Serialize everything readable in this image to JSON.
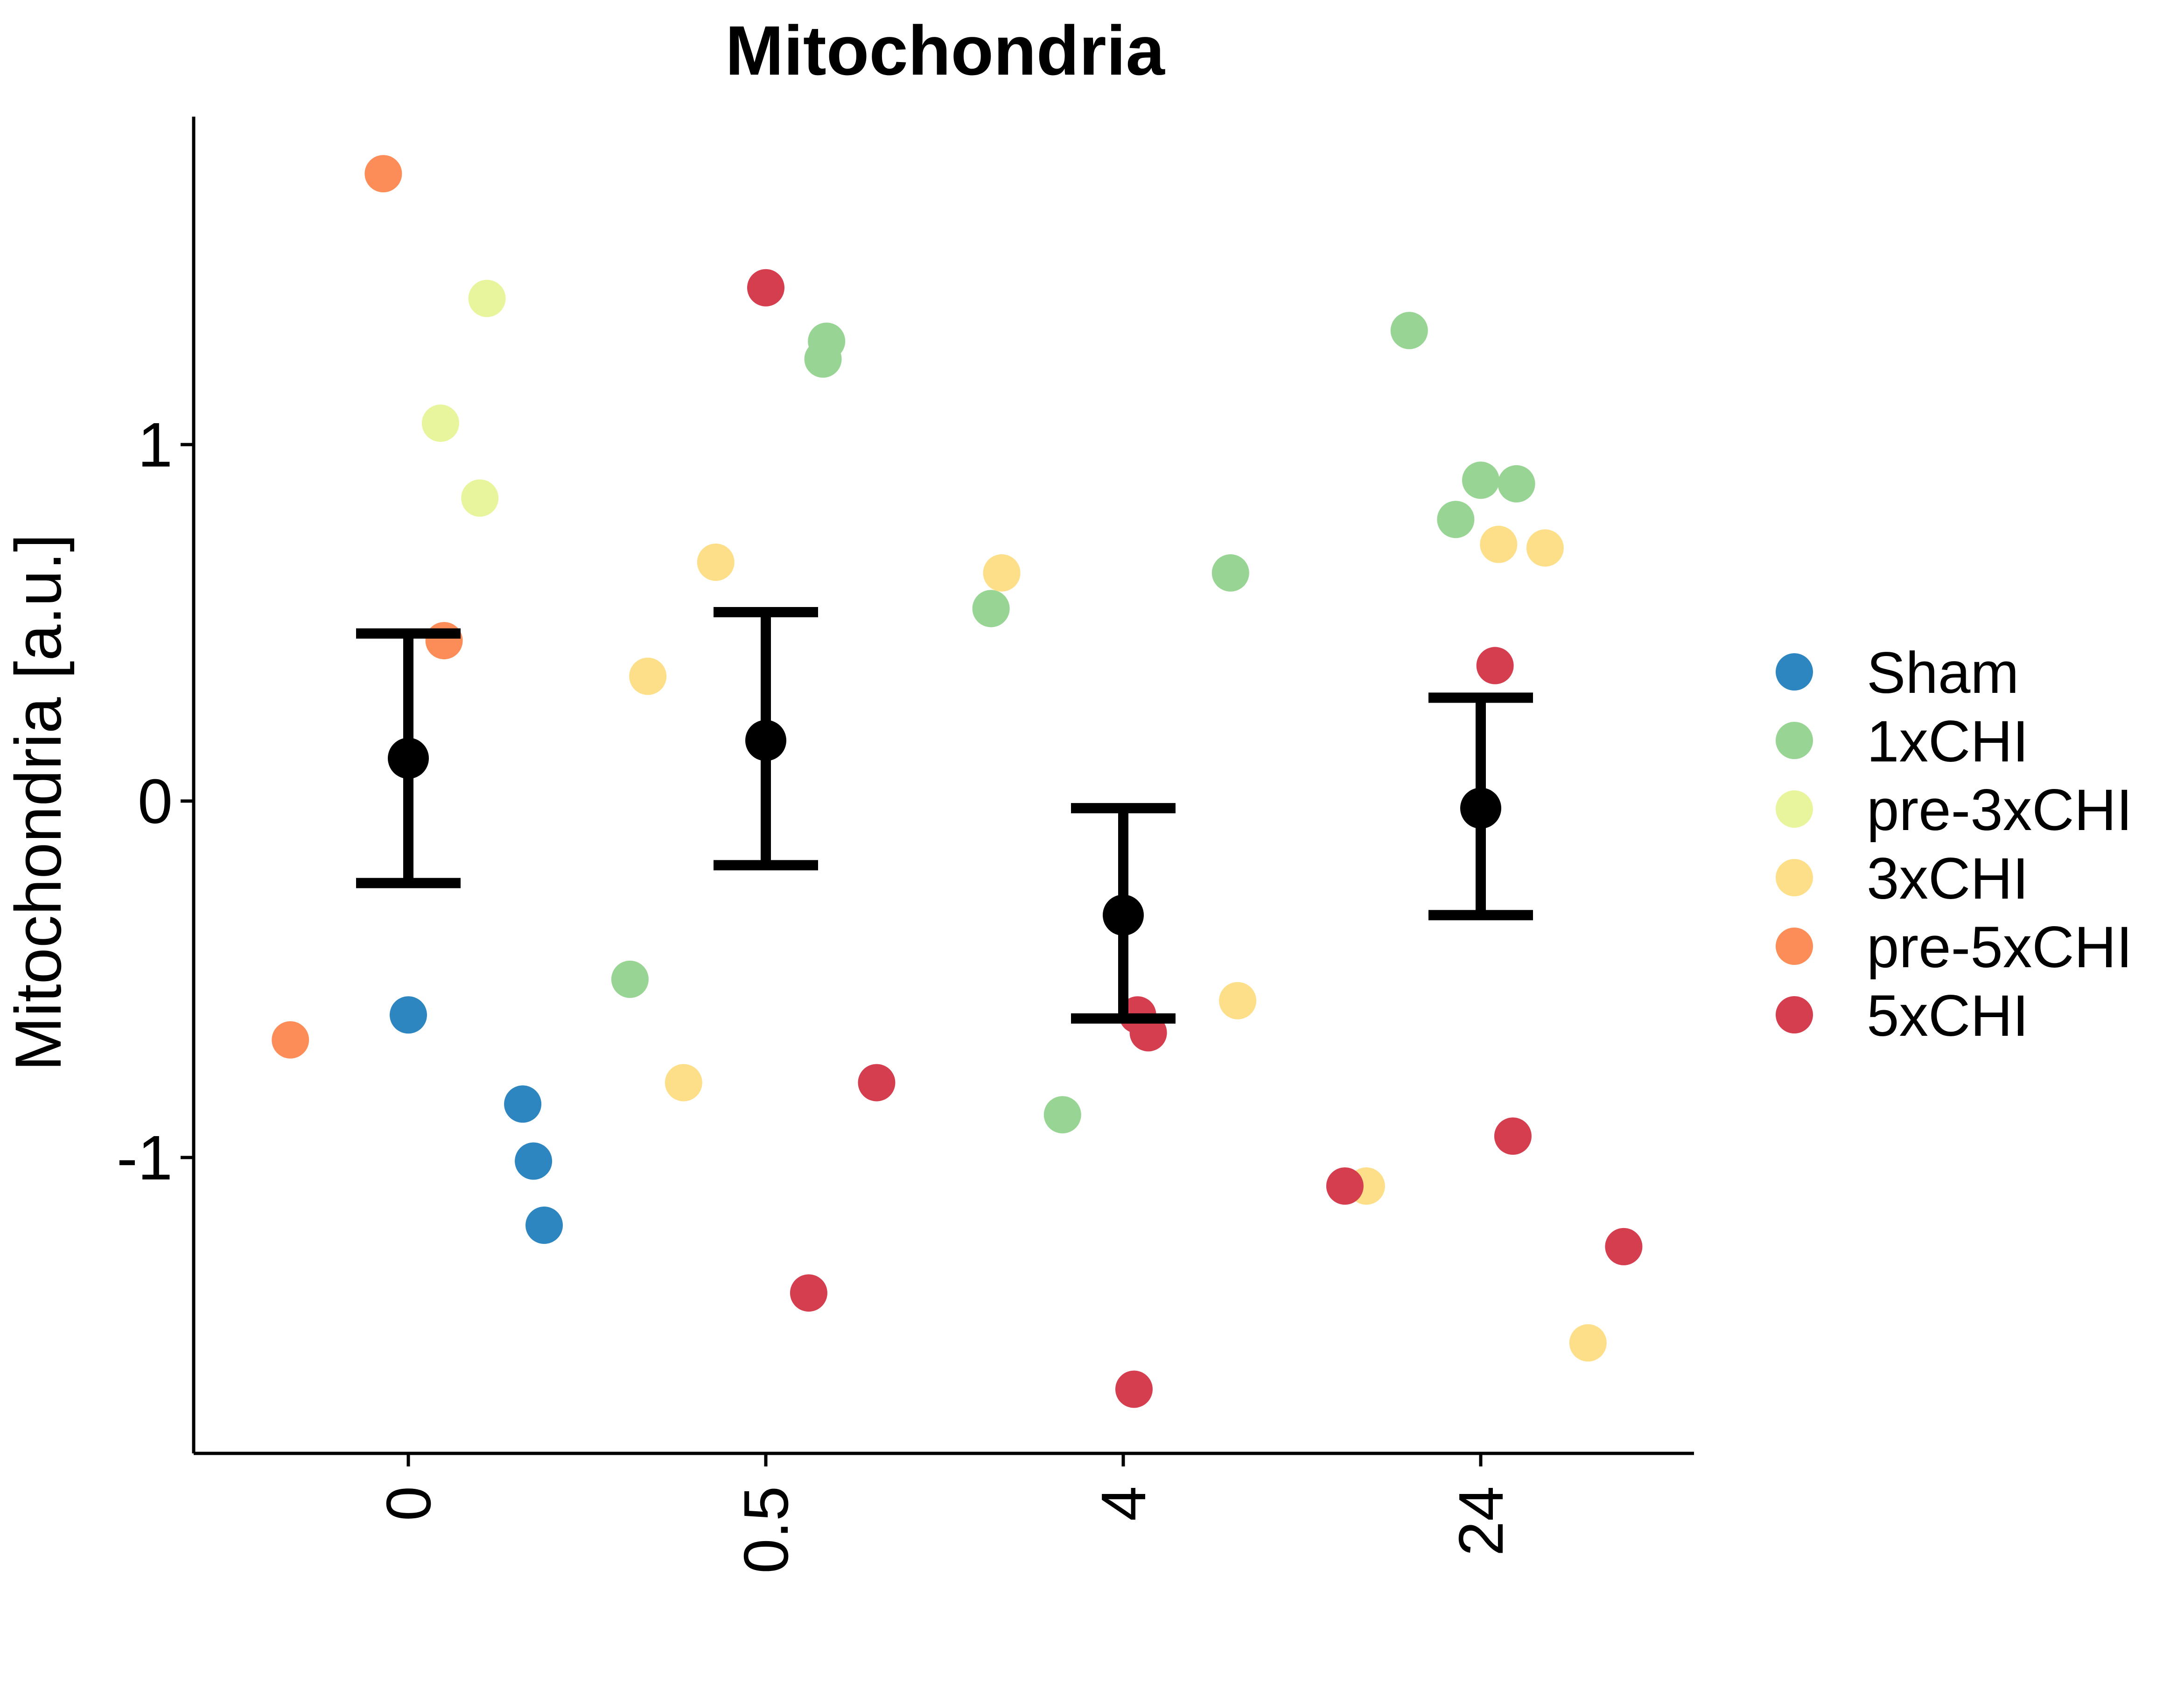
{
  "chart_data": {
    "type": "scatter",
    "title": "Mitochondria",
    "ylabel": "Mitochondria [a.u.]",
    "xlabel": "",
    "categories": [
      "0",
      "0.5",
      "4",
      "24"
    ],
    "ylim": [
      -1.83,
      1.92
    ],
    "yticks": [
      {
        "value": 1,
        "label": "1"
      },
      {
        "value": 0,
        "label": "0"
      },
      {
        "value": -1,
        "label": "-1"
      }
    ],
    "grid": false,
    "legend_position": "right",
    "series": [
      {
        "name": "Sham",
        "color": "#2E86C1",
        "points": [
          {
            "x": 0.0,
            "y": -0.6
          },
          {
            "x": 0.32,
            "y": -0.85
          },
          {
            "x": 0.35,
            "y": -1.01
          },
          {
            "x": 0.38,
            "y": -1.19
          }
        ]
      },
      {
        "name": "1xCHI",
        "color": "#98D594",
        "points": [
          {
            "x": 0.62,
            "y": -0.5
          },
          {
            "x": 1.17,
            "y": 1.29
          },
          {
            "x": 1.16,
            "y": 1.24
          },
          {
            "x": 1.63,
            "y": 0.54
          },
          {
            "x": 1.83,
            "y": -0.88
          },
          {
            "x": 2.3,
            "y": 0.64
          },
          {
            "x": 2.8,
            "y": 1.32
          },
          {
            "x": 2.93,
            "y": 0.79
          },
          {
            "x": 3.0,
            "y": 0.9
          },
          {
            "x": 3.1,
            "y": 0.89
          }
        ]
      },
      {
        "name": "pre-3xCHI",
        "color": "#E8F59C",
        "points": [
          {
            "x": 0.09,
            "y": 1.06
          },
          {
            "x": 0.22,
            "y": 1.41
          },
          {
            "x": 0.2,
            "y": 0.85
          }
        ]
      },
      {
        "name": "3xCHI",
        "color": "#FDDF8A",
        "points": [
          {
            "x": 0.67,
            "y": 0.35
          },
          {
            "x": 0.86,
            "y": 0.67
          },
          {
            "x": 0.77,
            "y": -0.79
          },
          {
            "x": 1.66,
            "y": 0.64
          },
          {
            "x": 2.32,
            "y": -0.56
          },
          {
            "x": 2.68,
            "y": -1.08
          },
          {
            "x": 3.05,
            "y": 0.72
          },
          {
            "x": 3.18,
            "y": 0.71
          },
          {
            "x": 3.3,
            "y": -1.52
          }
        ]
      },
      {
        "name": "pre-5xCHI",
        "color": "#FC8D59",
        "points": [
          {
            "x": -0.07,
            "y": 1.76
          },
          {
            "x": 0.1,
            "y": 0.45
          },
          {
            "x": -0.33,
            "y": -0.67
          }
        ]
      },
      {
        "name": "5xCHI",
        "color": "#D53E4F",
        "points": [
          {
            "x": 1.0,
            "y": 1.44
          },
          {
            "x": 1.12,
            "y": -1.38
          },
          {
            "x": 1.31,
            "y": -0.79
          },
          {
            "x": 2.04,
            "y": -0.6
          },
          {
            "x": 2.07,
            "y": -0.65
          },
          {
            "x": 2.03,
            "y": -1.65
          },
          {
            "x": 2.62,
            "y": -1.08
          },
          {
            "x": 3.04,
            "y": 0.38
          },
          {
            "x": 3.09,
            "y": -0.94
          },
          {
            "x": 3.4,
            "y": -1.25
          }
        ]
      }
    ],
    "summary": [
      {
        "category": "0",
        "mean": 0.12,
        "lower": -0.23,
        "upper": 0.47
      },
      {
        "category": "0.5",
        "mean": 0.17,
        "lower": -0.18,
        "upper": 0.53
      },
      {
        "category": "4",
        "mean": -0.32,
        "lower": -0.61,
        "upper": -0.02
      },
      {
        "category": "24",
        "mean": -0.02,
        "lower": -0.32,
        "upper": 0.29
      }
    ]
  }
}
